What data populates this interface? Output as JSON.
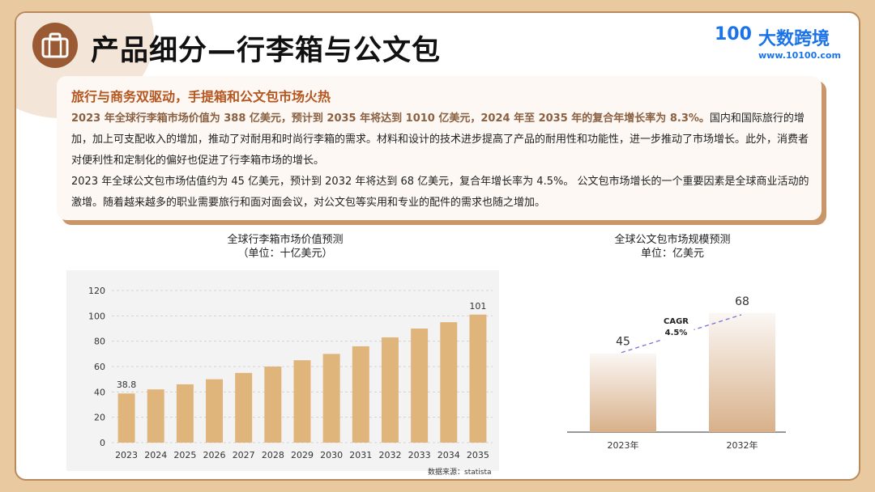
{
  "header": {
    "title": "产品细分—行李箱与公文包",
    "logo_mark": "100",
    "logo_name": "大数跨境",
    "logo_url": "www.10100.com"
  },
  "card": {
    "subheading": "旅行与商务双驱动，手提箱和公文包市场火热",
    "p1_lead": "2023 年全球行李箱市场价值为 388 亿美元，预计到 2035 年将达到 1010 亿美元，2024 年至 2035 年的复合年增长率为 8.3%。",
    "p1_rest": "国内和国际旅行的增加，加上可支配收入的增加，推动了对耐用和时尚行李箱的需求。材料和设计的技术进步提高了产品的耐用性和功能性，进一步推动了市场增长。此外，消费者对便利性和定制化的偏好也促进了行李箱市场的增长。",
    "p2": "2023 年全球公文包市场估值约为 45 亿美元，预计到 2032 年将达到 68 亿美元，复合年增长率为 4.5%。 公文包市场增长的一个重要因素是全球商业活动的激增。随着越来越多的职业需要旅行和面对面会议，对公文包等实用和专业的配件的需求也随之增加。"
  },
  "colors": {
    "bar": "#e0b57b",
    "accent": "#b5561f",
    "border": "#b98a5c",
    "cagr_line": "#7b6fd6"
  },
  "icons": {
    "header_icon": "suitcase-icon"
  },
  "source": "数据来源：statista",
  "chart_data": [
    {
      "type": "bar",
      "title": "全球行李箱市场价值预测",
      "subtitle": "（单位：十亿美元）",
      "categories": [
        "2023",
        "2024",
        "2025",
        "2026",
        "2027",
        "2028",
        "2029",
        "2030",
        "2031",
        "2032",
        "2033",
        "2034",
        "2035"
      ],
      "values": [
        38.8,
        42,
        46,
        50,
        55,
        60,
        65,
        70,
        76,
        83,
        90,
        95,
        101
      ],
      "data_labels": {
        "0": "38.8",
        "12": "101"
      },
      "yticks": [
        "0",
        "20",
        "40",
        "60",
        "80",
        "100",
        "120"
      ],
      "ylim": [
        0,
        120
      ],
      "grid": true
    },
    {
      "type": "bar",
      "title": "全球公文包市场规模预测",
      "subtitle": "单位：亿美元",
      "categories": [
        "2023年",
        "2032年"
      ],
      "values": [
        45,
        68
      ],
      "data_labels": [
        "45",
        "68"
      ],
      "annotation": "CAGR",
      "annotation_value": "4.5%",
      "ylim": [
        0,
        80
      ],
      "grid": false
    }
  ]
}
